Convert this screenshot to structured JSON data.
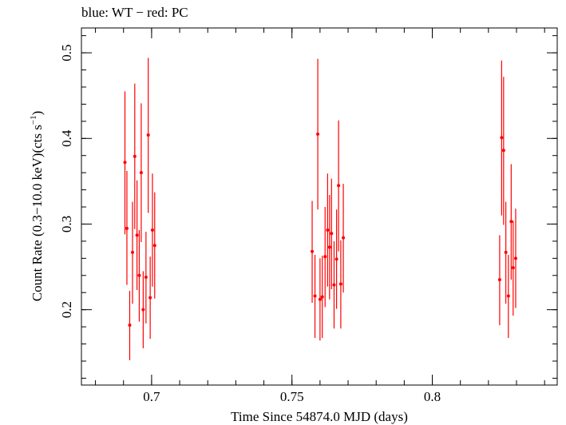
{
  "chart_data": {
    "type": "scatter",
    "title": "blue: WT − red: PC",
    "xlabel": "Time Since 54874.0 MJD (days)",
    "ylabel_main": "Count Rate (0.3−10.0 keV)(cts s",
    "ylabel_sup": "−1",
    "ylabel_close": ")",
    "xlim": [
      0.675,
      0.8445
    ],
    "ylim": [
      0.112,
      0.529
    ],
    "x_ticks": [
      0.7,
      0.75,
      0.8
    ],
    "x_tick_labels": [
      "0.7",
      "0.75",
      "0.8"
    ],
    "y_ticks": [
      0.2,
      0.3,
      0.4,
      0.5
    ],
    "y_tick_labels": [
      "0.2",
      "0.3",
      "0.4",
      "0.5"
    ],
    "grid": false,
    "series": [
      {
        "color": "#ff0000",
        "points": [
          {
            "x": 0.6905,
            "y": 0.372,
            "lo": 0.288,
            "hi": 0.455
          },
          {
            "x": 0.6912,
            "y": 0.295,
            "lo": 0.229,
            "hi": 0.362
          },
          {
            "x": 0.6922,
            "y": 0.182,
            "lo": 0.141,
            "hi": 0.222
          },
          {
            "x": 0.6932,
            "y": 0.267,
            "lo": 0.207,
            "hi": 0.326
          },
          {
            "x": 0.694,
            "y": 0.379,
            "lo": 0.294,
            "hi": 0.464
          },
          {
            "x": 0.6948,
            "y": 0.287,
            "lo": 0.223,
            "hi": 0.351
          },
          {
            "x": 0.6956,
            "y": 0.24,
            "lo": 0.186,
            "hi": 0.293
          },
          {
            "x": 0.6963,
            "y": 0.36,
            "lo": 0.279,
            "hi": 0.441
          },
          {
            "x": 0.697,
            "y": 0.2,
            "lo": 0.155,
            "hi": 0.245
          },
          {
            "x": 0.698,
            "y": 0.238,
            "lo": 0.184,
            "hi": 0.291
          },
          {
            "x": 0.6988,
            "y": 0.404,
            "lo": 0.313,
            "hi": 0.494
          },
          {
            "x": 0.6995,
            "y": 0.214,
            "lo": 0.166,
            "hi": 0.262
          },
          {
            "x": 0.7003,
            "y": 0.293,
            "lo": 0.227,
            "hi": 0.359
          },
          {
            "x": 0.7011,
            "y": 0.275,
            "lo": 0.213,
            "hi": 0.337
          },
          {
            "x": 0.7572,
            "y": 0.268,
            "lo": 0.208,
            "hi": 0.327
          },
          {
            "x": 0.7582,
            "y": 0.216,
            "lo": 0.167,
            "hi": 0.264
          },
          {
            "x": 0.7592,
            "y": 0.405,
            "lo": 0.317,
            "hi": 0.493
          },
          {
            "x": 0.76,
            "y": 0.212,
            "lo": 0.164,
            "hi": 0.26
          },
          {
            "x": 0.7608,
            "y": 0.215,
            "lo": 0.167,
            "hi": 0.263
          },
          {
            "x": 0.7618,
            "y": 0.262,
            "lo": 0.203,
            "hi": 0.32
          },
          {
            "x": 0.7627,
            "y": 0.293,
            "lo": 0.227,
            "hi": 0.359
          },
          {
            "x": 0.7634,
            "y": 0.273,
            "lo": 0.212,
            "hi": 0.334
          },
          {
            "x": 0.7641,
            "y": 0.289,
            "lo": 0.224,
            "hi": 0.353
          },
          {
            "x": 0.765,
            "y": 0.229,
            "lo": 0.178,
            "hi": 0.28
          },
          {
            "x": 0.7659,
            "y": 0.259,
            "lo": 0.201,
            "hi": 0.317
          },
          {
            "x": 0.7666,
            "y": 0.345,
            "lo": 0.268,
            "hi": 0.421
          },
          {
            "x": 0.7674,
            "y": 0.23,
            "lo": 0.178,
            "hi": 0.281
          },
          {
            "x": 0.7683,
            "y": 0.284,
            "lo": 0.22,
            "hi": 0.347
          },
          {
            "x": 0.824,
            "y": 0.235,
            "lo": 0.182,
            "hi": 0.287
          },
          {
            "x": 0.8247,
            "y": 0.401,
            "lo": 0.31,
            "hi": 0.491
          },
          {
            "x": 0.8254,
            "y": 0.386,
            "lo": 0.299,
            "hi": 0.472
          },
          {
            "x": 0.8262,
            "y": 0.267,
            "lo": 0.207,
            "hi": 0.326
          },
          {
            "x": 0.8271,
            "y": 0.216,
            "lo": 0.167,
            "hi": 0.264
          },
          {
            "x": 0.8281,
            "y": 0.303,
            "lo": 0.235,
            "hi": 0.37
          },
          {
            "x": 0.8288,
            "y": 0.249,
            "lo": 0.193,
            "hi": 0.304
          },
          {
            "x": 0.8297,
            "y": 0.26,
            "lo": 0.202,
            "hi": 0.318
          }
        ]
      }
    ]
  }
}
